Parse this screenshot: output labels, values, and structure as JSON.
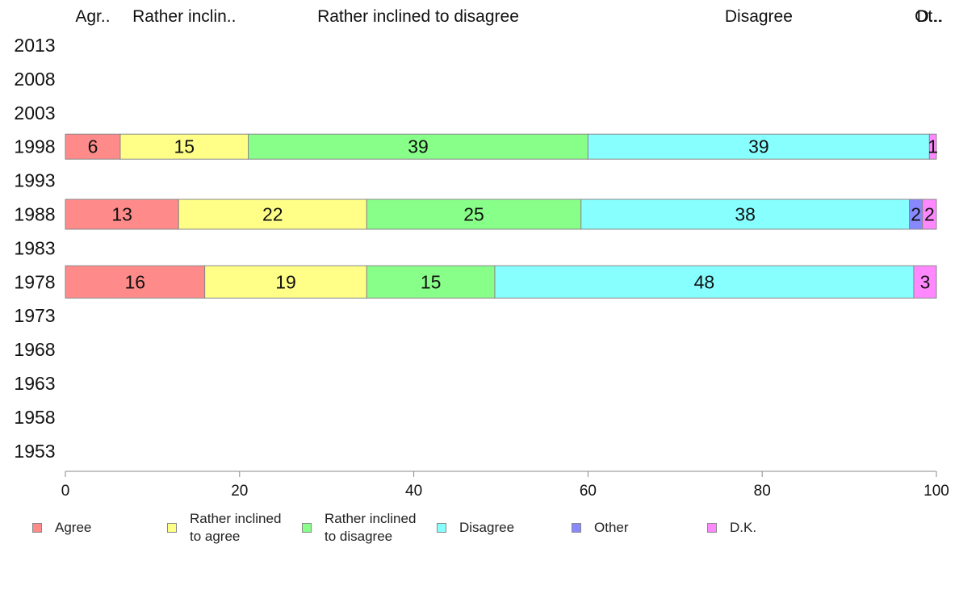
{
  "chart_data": {
    "type": "bar",
    "orientation": "horizontal",
    "stacked": true,
    "years": [
      "2013",
      "2008",
      "2003",
      "1998",
      "1993",
      "1988",
      "1983",
      "1978",
      "1973",
      "1968",
      "1963",
      "1958",
      "1953"
    ],
    "top_labels": [
      "Agr..",
      "Rather inclin..",
      "Rather inclined to disagree",
      "Disagree",
      "Ot..",
      "D..."
    ],
    "series": [
      {
        "name": "Agree",
        "legend": "Agree",
        "color": "#ff8a8a"
      },
      {
        "name": "Rather inclined to agree",
        "legend": "Rather inclined\nto agree",
        "color": "#ffff88"
      },
      {
        "name": "Rather inclined to disagree",
        "legend": "Rather inclined\nto disagree",
        "color": "#88ff88"
      },
      {
        "name": "Disagree",
        "legend": "Disagree",
        "color": "#88ffff"
      },
      {
        "name": "Other",
        "legend": "Other",
        "color": "#8888ff"
      },
      {
        "name": "D.K.",
        "legend": "D.K.",
        "color": "#ff88ff"
      }
    ],
    "bars": [
      {
        "year": "1998",
        "values": [
          6.3,
          14.7,
          39,
          39.2,
          0,
          0.8
        ],
        "labels": [
          "6",
          "15",
          "39",
          "39",
          "",
          "1"
        ]
      },
      {
        "year": "1988",
        "values": [
          13,
          21.6,
          24.6,
          37.7,
          1.5,
          1.6
        ],
        "labels": [
          "13",
          "22",
          "25",
          "38",
          "2",
          "2"
        ]
      },
      {
        "year": "1978",
        "values": [
          16,
          18.6,
          14.7,
          48.1,
          0,
          2.6
        ],
        "labels": [
          "16",
          "19",
          "15",
          "48",
          "",
          "3"
        ]
      }
    ],
    "xlim": [
      0,
      100
    ],
    "xticks": [
      0,
      20,
      40,
      60,
      80,
      100
    ],
    "grid": false,
    "legend_position": "bottom"
  }
}
